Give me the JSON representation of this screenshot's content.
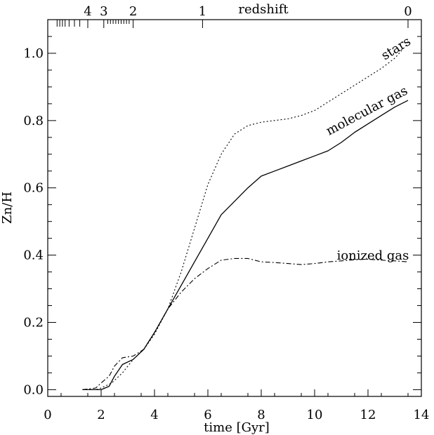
{
  "chart_data": {
    "type": "line",
    "xlabel": "time [Gyr]",
    "ylabel": "Zn/H",
    "top_axis_label": "redshift",
    "xlim": [
      0,
      14
    ],
    "ylim": [
      -0.02,
      1.1
    ],
    "xticks": [
      "0",
      "2",
      "4",
      "6",
      "8",
      "10",
      "12",
      "14"
    ],
    "yticks": [
      "0.0",
      "0.2",
      "0.4",
      "0.6",
      "0.8",
      "1.0"
    ],
    "redshift_ticks": [
      {
        "label": "4",
        "t": 1.5
      },
      {
        "label": "3",
        "t": 2.1
      },
      {
        "label": "2",
        "t": 3.2
      },
      {
        "label": "1",
        "t": 5.8
      },
      {
        "label": "0",
        "t": 13.5
      }
    ],
    "series": [
      {
        "name": "stars",
        "style": "dotted",
        "x": [
          1.3,
          1.8,
          2.0,
          2.4,
          2.8,
          3.2,
          3.6,
          4.0,
          4.5,
          5.0,
          5.5,
          6.0,
          6.5,
          7.0,
          7.5,
          8.0,
          8.5,
          9.0,
          9.5,
          10.0,
          10.5,
          11.0,
          11.5,
          12.0,
          12.5,
          13.0,
          13.5
        ],
        "y": [
          0.0,
          0.0,
          0.005,
          0.02,
          0.05,
          0.09,
          0.12,
          0.165,
          0.24,
          0.35,
          0.48,
          0.61,
          0.7,
          0.76,
          0.785,
          0.795,
          0.8,
          0.805,
          0.815,
          0.83,
          0.855,
          0.88,
          0.905,
          0.93,
          0.955,
          0.985,
          1.03
        ]
      },
      {
        "name": "molecular gas",
        "style": "solid",
        "x": [
          1.3,
          2.0,
          2.3,
          2.5,
          2.8,
          3.2,
          3.6,
          4.0,
          4.5,
          5.0,
          5.5,
          6.0,
          6.5,
          7.0,
          7.5,
          8.0,
          8.5,
          9.0,
          9.5,
          10.0,
          10.5,
          11.0,
          11.5,
          12.0,
          12.5,
          13.0,
          13.5
        ],
        "y": [
          0.0,
          0.0,
          0.01,
          0.04,
          0.075,
          0.09,
          0.12,
          0.17,
          0.24,
          0.31,
          0.38,
          0.45,
          0.52,
          0.56,
          0.6,
          0.635,
          0.65,
          0.665,
          0.68,
          0.695,
          0.71,
          0.735,
          0.765,
          0.79,
          0.815,
          0.84,
          0.86
        ]
      },
      {
        "name": "ionized gas",
        "style": "dash-dot",
        "x": [
          1.3,
          1.8,
          2.0,
          2.3,
          2.5,
          2.8,
          3.2,
          3.6,
          4.0,
          4.5,
          5.0,
          5.5,
          6.0,
          6.5,
          7.0,
          7.5,
          8.0,
          8.5,
          9.0,
          9.5,
          10.0,
          10.5,
          11.0,
          11.5,
          12.0,
          12.5,
          13.0,
          13.5
        ],
        "y": [
          0.0,
          0.005,
          0.02,
          0.04,
          0.07,
          0.095,
          0.1,
          0.12,
          0.17,
          0.24,
          0.29,
          0.33,
          0.36,
          0.385,
          0.39,
          0.39,
          0.38,
          0.378,
          0.375,
          0.372,
          0.375,
          0.38,
          0.383,
          0.386,
          0.388,
          0.385,
          0.383,
          0.38
        ]
      }
    ],
    "annotations": [
      "stars",
      "molecular gas",
      "ionized gas"
    ]
  }
}
